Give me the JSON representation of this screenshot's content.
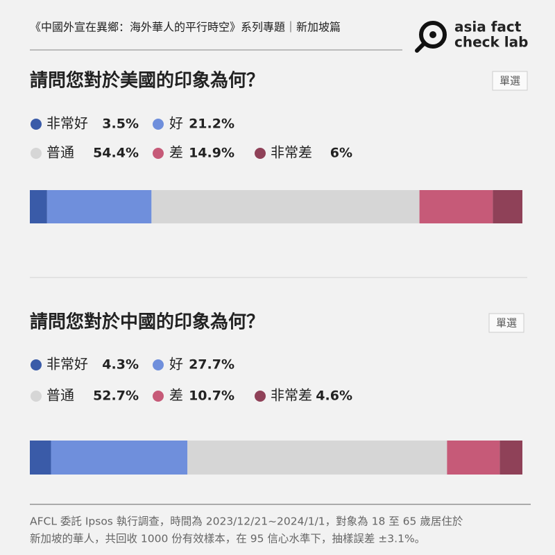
{
  "header": {
    "text": "《中國外宣在異鄉：海外華人的平行時空》系列專題｜新加坡篇"
  },
  "logo": {
    "line1": "asia fact",
    "line2": "check lab"
  },
  "chart_data": [
    {
      "type": "stacked-bar",
      "title": "請問您對於美國的印象為何？",
      "badge": "單選",
      "xlim": [
        0,
        100
      ],
      "series": [
        {
          "name": "非常好",
          "color": "#3a5ba8",
          "values": [
            3.5
          ],
          "value_labels": [
            "3.5%"
          ]
        },
        {
          "name": "好",
          "color": "#6f8fdc",
          "values": [
            21.2
          ],
          "value_labels": [
            "21.2%"
          ]
        },
        {
          "name": "普通",
          "color": "#d6d6d6",
          "values": [
            54.4
          ],
          "value_labels": [
            "54.4%"
          ]
        },
        {
          "name": "差",
          "color": "#c65a78",
          "values": [
            14.9
          ],
          "value_labels": [
            "14.9%"
          ]
        },
        {
          "name": "非常差",
          "color": "#8f4158",
          "values": [
            6
          ],
          "value_labels": [
            "6%"
          ]
        }
      ]
    },
    {
      "type": "stacked-bar",
      "title": "請問您對於中國的印象為何？",
      "badge": "單選",
      "xlim": [
        0,
        100
      ],
      "series": [
        {
          "name": "非常好",
          "color": "#3a5ba8",
          "values": [
            4.3
          ],
          "value_labels": [
            "4.3%"
          ]
        },
        {
          "name": "好",
          "color": "#6f8fdc",
          "values": [
            27.7
          ],
          "value_labels": [
            "27.7%"
          ]
        },
        {
          "name": "普通",
          "color": "#d6d6d6",
          "values": [
            52.7
          ],
          "value_labels": [
            "52.7%"
          ]
        },
        {
          "name": "差",
          "color": "#c65a78",
          "values": [
            10.7
          ],
          "value_labels": [
            "10.7%"
          ]
        },
        {
          "name": "非常差",
          "color": "#8f4158",
          "values": [
            4.6
          ],
          "value_labels": [
            "4.6%"
          ]
        }
      ]
    }
  ],
  "footer": {
    "lines": [
      "AFCL 委託 Ipsos 執行調查，時間為 2023/12/21~2024/1/1，對象為 18 至 65 歲居住於",
      "新加坡的華人，共回收 1000 份有效樣本，在 95 信心水準下，抽樣誤差 ±3.1%。"
    ]
  }
}
